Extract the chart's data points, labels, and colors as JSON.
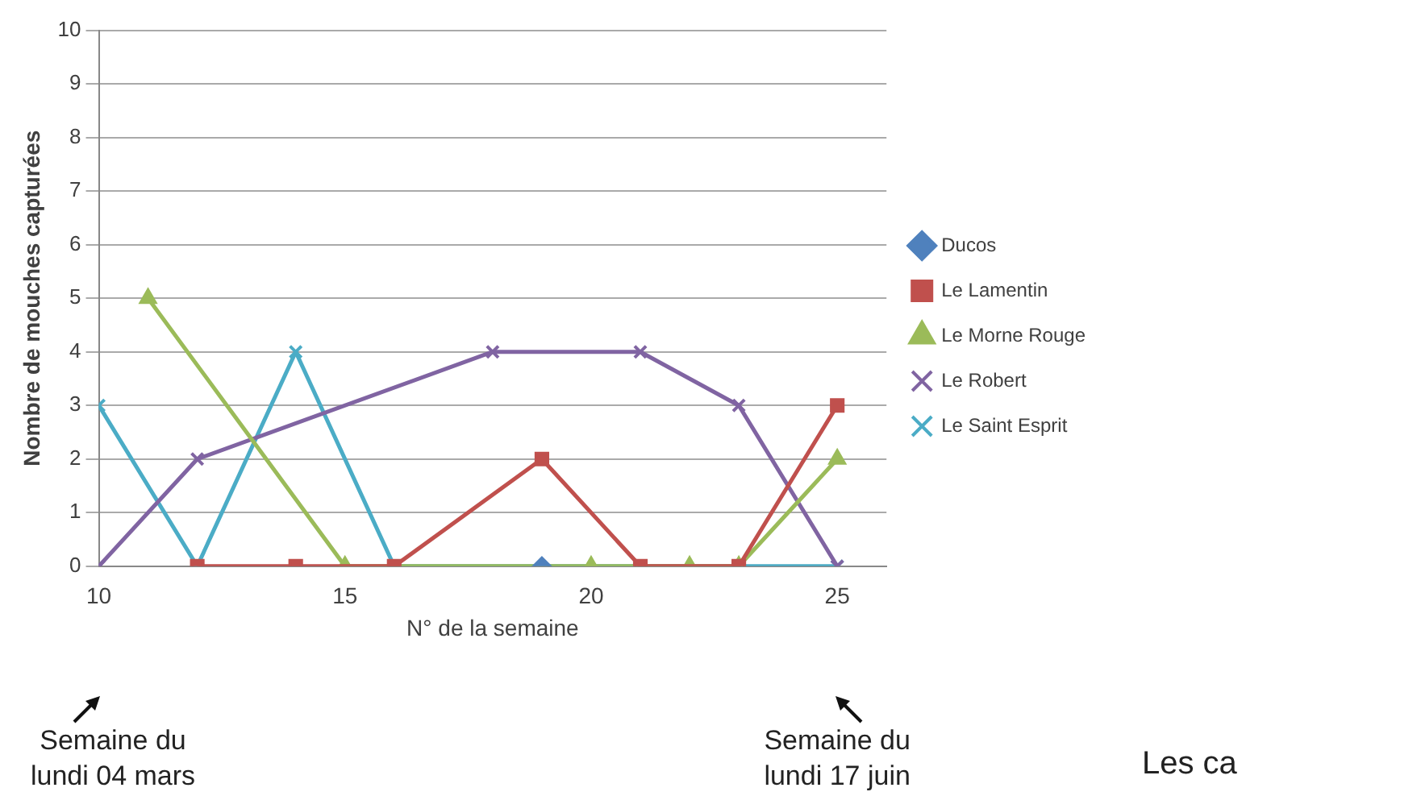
{
  "chart_data": {
    "type": "line",
    "xlabel": "N° de la semaine",
    "ylabel": "Nombre de mouches capturées",
    "xlim": [
      10,
      26
    ],
    "xticks": [
      10,
      15,
      20,
      25
    ],
    "ylim": [
      0,
      10
    ],
    "yticks": [
      0,
      1,
      2,
      3,
      4,
      5,
      6,
      7,
      8,
      9,
      10
    ],
    "grid": "y",
    "legend": "right",
    "series": [
      {
        "name": "Ducos",
        "color": "#4f81bd",
        "marker": "diamond",
        "x": [
          19
        ],
        "values": [
          0
        ]
      },
      {
        "name": "Le Lamentin",
        "color": "#c0504d",
        "marker": "square",
        "x": [
          12,
          14,
          16,
          19,
          21,
          23,
          25
        ],
        "values": [
          0,
          0,
          0,
          2,
          0,
          0,
          3
        ]
      },
      {
        "name": "Le Morne Rouge",
        "color": "#9bbb59",
        "marker": "triangle",
        "x": [
          11,
          15,
          20,
          22,
          23,
          25
        ],
        "values": [
          5,
          0,
          0,
          0,
          0,
          2
        ]
      },
      {
        "name": "Le Robert",
        "color": "#8064a2",
        "marker": "cross",
        "x": [
          10,
          12,
          18,
          21,
          23,
          25
        ],
        "values": [
          0,
          2,
          4,
          4,
          3,
          0
        ]
      },
      {
        "name": "Le Saint Esprit",
        "color": "#4bacc6",
        "marker": "cross",
        "x": [
          10,
          12,
          14,
          16,
          25
        ],
        "values": [
          3,
          0,
          4,
          0,
          0
        ]
      }
    ],
    "annotations": [
      "Semaine du lundi 04 mars",
      "Semaine du lundi 17 juin",
      "Les ca"
    ]
  }
}
